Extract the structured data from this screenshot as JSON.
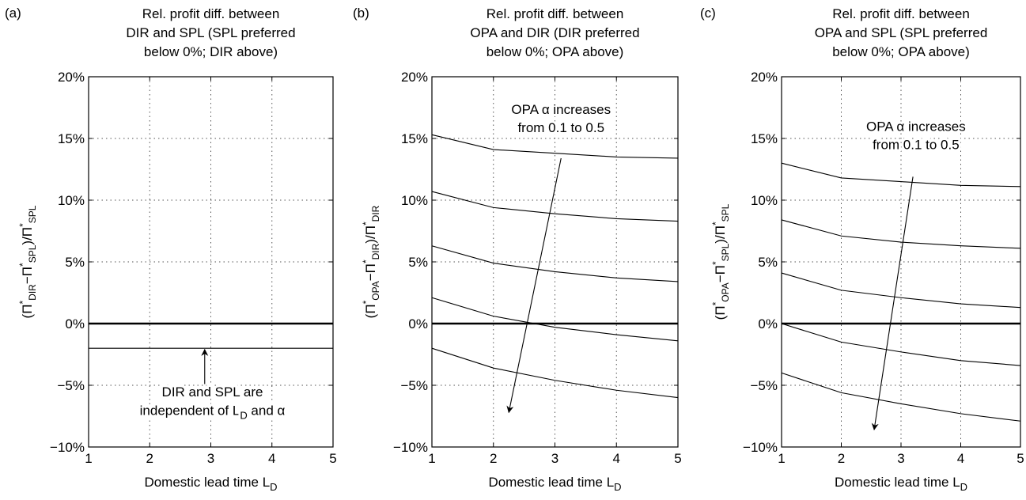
{
  "chart_data": [
    {
      "type": "line",
      "panel_label": "(a)",
      "title": [
        "Rel. profit diff. between",
        "DIR and SPL (SPL preferred",
        "below 0%; DIR above)"
      ],
      "xlabel": "Domestic lead time L",
      "xlabel_sub": "D",
      "ylabel": {
        "open": "(Π",
        "s1": "*",
        "sub1": "DIR",
        "mid": "−Π",
        "s2": "*",
        "sub2": "SPL",
        "close": ")/Π",
        "s3": "*",
        "sub3": "SPL"
      },
      "x": [
        1,
        2,
        3,
        4,
        5
      ],
      "xlim": [
        1,
        5
      ],
      "ylim": [
        -10,
        20
      ],
      "xticks": [
        "1",
        "2",
        "3",
        "4",
        "5"
      ],
      "yticks": [
        {
          "value": 20,
          "label": "20%"
        },
        {
          "value": 15,
          "label": "15%"
        },
        {
          "value": 10,
          "label": "10%"
        },
        {
          "value": 5,
          "label": "5%"
        },
        {
          "value": 0,
          "label": "0%"
        },
        {
          "value": -5,
          "label": "−5%"
        },
        {
          "value": -10,
          "label": "−10%"
        }
      ],
      "grid": true,
      "series": [
        {
          "values": [
            -2,
            -2,
            -2,
            -2,
            -2
          ]
        }
      ],
      "annotation": {
        "lines": [
          "DIR and SPL are",
          "independent of L"
        ],
        "line2_sub": "D",
        "line2_tail": " and α",
        "arrow": {
          "from": [
            2.9,
            -4.9
          ],
          "to": [
            2.9,
            -2.1
          ]
        }
      }
    },
    {
      "type": "line",
      "panel_label": "(b)",
      "title": [
        "Rel. profit diff. between",
        "OPA and DIR (DIR preferred",
        "below 0%; OPA above)"
      ],
      "xlabel": "Domestic lead time L",
      "xlabel_sub": "D",
      "ylabel": {
        "open": "(Π",
        "s1": "*",
        "sub1": "OPA",
        "mid": "−Π",
        "s2": "*",
        "sub2": "DIR",
        "close": ")/Π",
        "s3": "*",
        "sub3": "DIR"
      },
      "x": [
        1,
        2,
        3,
        4,
        5
      ],
      "xlim": [
        1,
        5
      ],
      "ylim": [
        -10,
        20
      ],
      "xticks": [
        "1",
        "2",
        "3",
        "4",
        "5"
      ],
      "yticks": [
        {
          "value": 20,
          "label": "20%"
        },
        {
          "value": 15,
          "label": "15%"
        },
        {
          "value": 10,
          "label": "10%"
        },
        {
          "value": 5,
          "label": "5%"
        },
        {
          "value": 0,
          "label": "0%"
        },
        {
          "value": -5,
          "label": "−5%"
        },
        {
          "value": -10,
          "label": "−10%"
        }
      ],
      "grid": true,
      "series": [
        {
          "values": [
            15.3,
            14.1,
            13.8,
            13.5,
            13.4
          ]
        },
        {
          "values": [
            10.7,
            9.4,
            8.9,
            8.5,
            8.3
          ]
        },
        {
          "values": [
            6.3,
            4.9,
            4.2,
            3.7,
            3.4
          ]
        },
        {
          "values": [
            2.1,
            0.6,
            -0.3,
            -0.9,
            -1.4
          ]
        },
        {
          "values": [
            -2.0,
            -3.6,
            -4.6,
            -5.4,
            -6.0
          ]
        }
      ],
      "annotation": {
        "lines": [
          "OPA α increases",
          "from 0.1 to 0.5"
        ],
        "arrow": {
          "from": [
            3.1,
            13.4
          ],
          "to": [
            2.25,
            -7.2
          ]
        }
      }
    },
    {
      "type": "line",
      "panel_label": "(c)",
      "title": [
        "Rel. profit diff. between",
        "OPA and SPL (SPL preferred",
        "below 0%; OPA above)"
      ],
      "xlabel": "Domestic lead time L",
      "xlabel_sub": "D",
      "ylabel": {
        "open": "(Π",
        "s1": "*",
        "sub1": "OPA",
        "mid": "−Π",
        "s2": "*",
        "sub2": "SPL",
        "close": ")/Π",
        "s3": "*",
        "sub3": "SPL"
      },
      "x": [
        1,
        2,
        3,
        4,
        5
      ],
      "xlim": [
        1,
        5
      ],
      "ylim": [
        -10,
        20
      ],
      "xticks": [
        "1",
        "2",
        "3",
        "4",
        "5"
      ],
      "yticks": [
        {
          "value": 20,
          "label": "20%"
        },
        {
          "value": 15,
          "label": "15%"
        },
        {
          "value": 10,
          "label": "10%"
        },
        {
          "value": 5,
          "label": "5%"
        },
        {
          "value": 0,
          "label": "0%"
        },
        {
          "value": -5,
          "label": "−5%"
        },
        {
          "value": -10,
          "label": "−10%"
        }
      ],
      "grid": true,
      "series": [
        {
          "values": [
            13.0,
            11.8,
            11.5,
            11.2,
            11.1
          ]
        },
        {
          "values": [
            8.4,
            7.1,
            6.6,
            6.3,
            6.1
          ]
        },
        {
          "values": [
            4.1,
            2.7,
            2.1,
            1.6,
            1.3
          ]
        },
        {
          "values": [
            0.0,
            -1.5,
            -2.3,
            -3.0,
            -3.4
          ]
        },
        {
          "values": [
            -4.0,
            -5.6,
            -6.5,
            -7.3,
            -7.9
          ]
        }
      ],
      "annotation": {
        "lines": [
          "OPA α increases",
          "from 0.1 to 0.5"
        ],
        "arrow": {
          "from": [
            3.2,
            11.9
          ],
          "to": [
            2.55,
            -8.6
          ]
        }
      }
    }
  ]
}
